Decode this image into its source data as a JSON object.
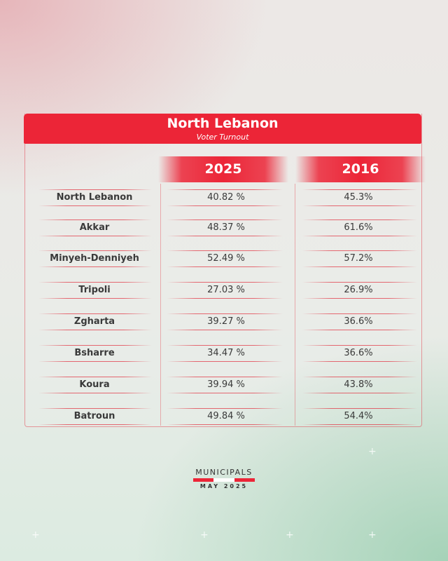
{
  "header": {
    "title": "North Lebanon",
    "subtitle": "Voter Turnout"
  },
  "chart_data": {
    "type": "table",
    "title": "North Lebanon",
    "subtitle": "Voter Turnout",
    "columns": [
      "2025",
      "2016"
    ],
    "rows": [
      {
        "name": "North Lebanon",
        "v2025": "40.82 %",
        "v2016": "45.3%"
      },
      {
        "name": "Akkar",
        "v2025": "48.37 %",
        "v2016": "61.6%"
      },
      {
        "name": "Minyeh-Denniyeh",
        "v2025": "52.49 %",
        "v2016": "57.2%"
      },
      {
        "name": "Tripoli",
        "v2025": "27.03 %",
        "v2016": "26.9%"
      },
      {
        "name": "Zgharta",
        "v2025": "39.27 %",
        "v2016": "36.6%"
      },
      {
        "name": "Bsharre",
        "v2025": "34.47 %",
        "v2016": "36.6%"
      },
      {
        "name": "Koura",
        "v2025": "39.94 %",
        "v2016": "43.8%"
      },
      {
        "name": "Batroun",
        "v2025": "49.84 %",
        "v2016": "54.4%"
      }
    ]
  },
  "logo": {
    "line1": "MUNICIPALS",
    "line2": "MAY 2025"
  },
  "colors": {
    "accent": "#ec2537",
    "flag_red": "#ec2537",
    "flag_white": "#ffffff",
    "text": "#3a3a3a"
  }
}
